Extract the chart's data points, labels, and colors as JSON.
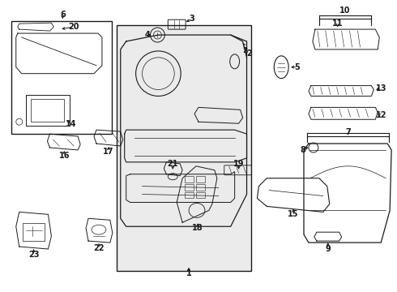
{
  "background_color": "#ffffff",
  "line_color": "#1a1a1a",
  "panel_bg": "#e8e8e8",
  "inset_bg": "#ffffff",
  "figsize": [
    4.9,
    3.6
  ],
  "dpi": 100
}
